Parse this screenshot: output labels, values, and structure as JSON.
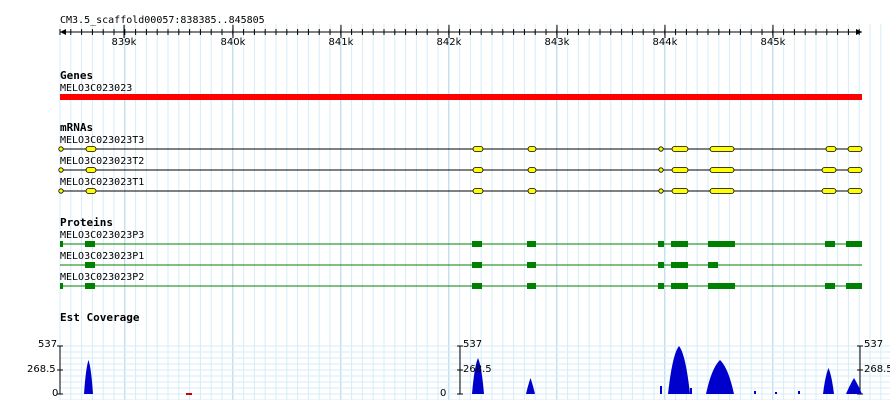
{
  "ruler": {
    "title": "CM3.5_scaffold00057:838385..845805",
    "ticks": [
      "839k",
      "840k",
      "841k",
      "842k",
      "843k",
      "844k",
      "845k"
    ]
  },
  "genes": {
    "label": "Genes",
    "items": [
      {
        "name": "MELO3C023023",
        "color": "#ff0000"
      }
    ]
  },
  "mrnas": {
    "label": "mRNAs",
    "items": [
      {
        "name": "MELO3C023023T3"
      },
      {
        "name": "MELO3C023023T2"
      },
      {
        "name": "MELO3C023023T1"
      }
    ],
    "exon_color": "#ffff00"
  },
  "proteins": {
    "label": "Proteins",
    "items": [
      {
        "name": "MELO3C023023P3"
      },
      {
        "name": "MELO3C023023P1"
      },
      {
        "name": "MELO3C023023P2"
      }
    ],
    "color": "#008000"
  },
  "coverage": {
    "label": "Est Coverage",
    "y_labels": [
      "537",
      "268.5",
      "0"
    ],
    "fill_color": "#0000cc"
  }
}
